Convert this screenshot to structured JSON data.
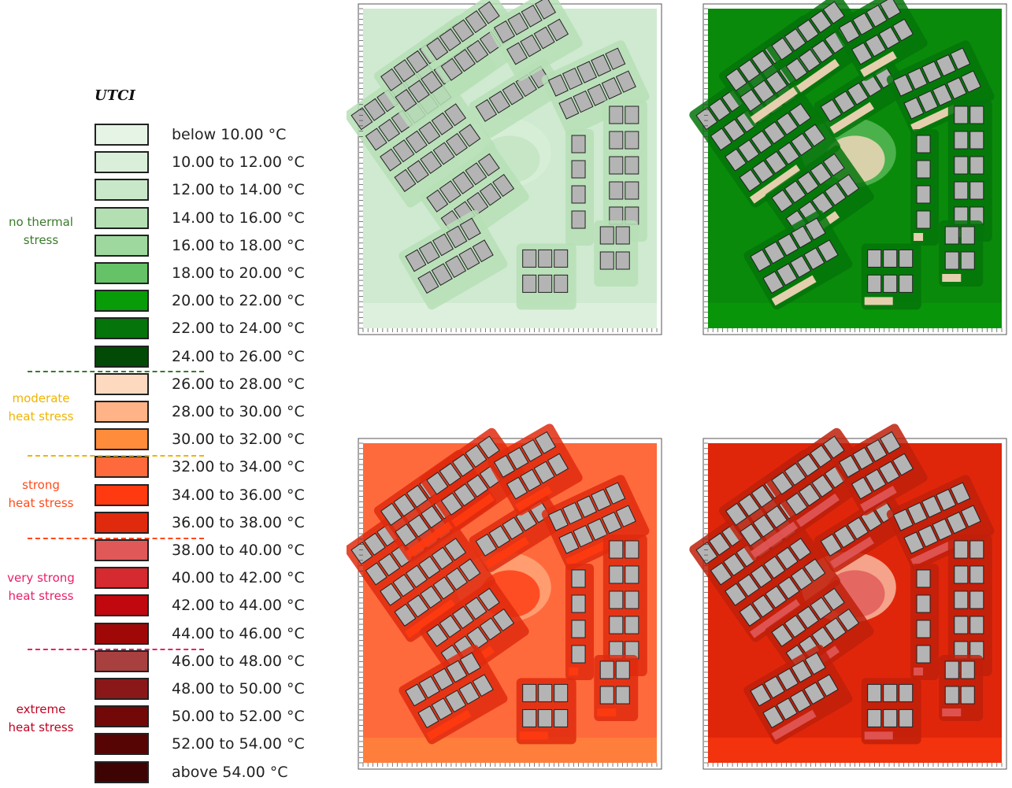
{
  "legend": {
    "title": "UTCI",
    "items": [
      {
        "label": "below 10.00 °C",
        "color": "#e6f4e6"
      },
      {
        "label": "10.00 to 12.00 °C",
        "color": "#d9efd9"
      },
      {
        "label": "12.00 to 14.00 °C",
        "color": "#c9e8c9"
      },
      {
        "label": "14.00 to 16.00 °C",
        "color": "#b3dfb3"
      },
      {
        "label": "16.00 to 18.00 °C",
        "color": "#9fd89f"
      },
      {
        "label": "18.00 to 20.00 °C",
        "color": "#66c266"
      },
      {
        "label": "20.00 to 22.00 °C",
        "color": "#089c08"
      },
      {
        "label": "22.00 to 24.00 °C",
        "color": "#05740a"
      },
      {
        "label": "24.00 to 26.00 °C",
        "color": "#034a06"
      },
      {
        "label": "26.00 to 28.00 °C",
        "color": "#fdd9c0"
      },
      {
        "label": "28.00 to 30.00 °C",
        "color": "#ffb386"
      },
      {
        "label": "30.00 to 32.00 °C",
        "color": "#ff8c3a"
      },
      {
        "label": "32.00 to 34.00 °C",
        "color": "#ff6a3c"
      },
      {
        "label": "34.00 to 36.00 °C",
        "color": "#ff3a10"
      },
      {
        "label": "36.00 to 38.00 °C",
        "color": "#e02a0e"
      },
      {
        "label": "38.00 to 40.00 °C",
        "color": "#e05858"
      },
      {
        "label": "40.00 to 42.00 °C",
        "color": "#d42a30"
      },
      {
        "label": "42.00 to 44.00 °C",
        "color": "#c0080e"
      },
      {
        "label": "44.00 to 46.00 °C",
        "color": "#a00808"
      },
      {
        "label": "46.00 to 48.00 °C",
        "color": "#a84040"
      },
      {
        "label": "48.00 to 50.00 °C",
        "color": "#8a1818"
      },
      {
        "label": "50.00 to 52.00 °C",
        "color": "#720808"
      },
      {
        "label": "52.00 to 54.00 °C",
        "color": "#560404"
      },
      {
        "label": "above 54.00 °C",
        "color": "#3e0404"
      }
    ],
    "groups": [
      {
        "lines": [
          "no thermal",
          "stress"
        ],
        "color": "#3a7a2a"
      },
      {
        "lines": [
          "moderate",
          "heat stress"
        ],
        "color": "#f0b400"
      },
      {
        "lines": [
          "strong",
          "heat stress"
        ],
        "color": "#ff4a1a"
      },
      {
        "lines": [
          "very strong",
          "heat stress"
        ],
        "color": "#e8206a"
      },
      {
        "lines": [
          "extreme",
          "heat stress"
        ],
        "color": "#c00020"
      }
    ]
  }
}
